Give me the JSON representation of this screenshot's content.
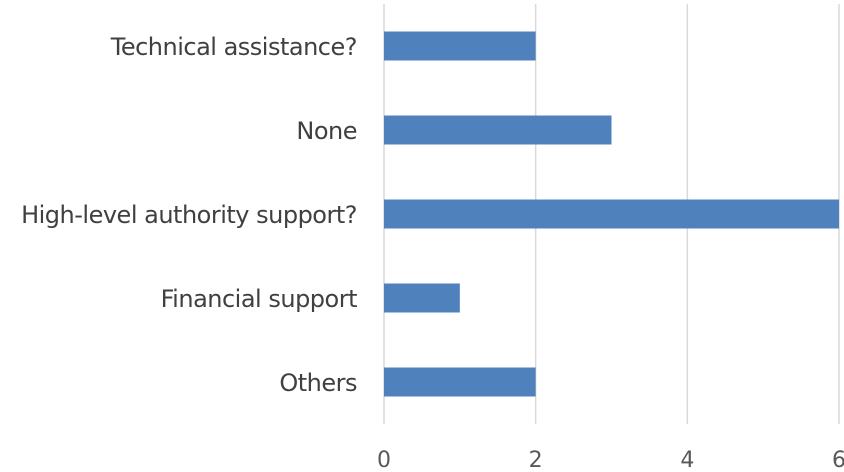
{
  "chart_data": {
    "type": "bar",
    "orientation": "horizontal",
    "categories": [
      "Technical assistance?",
      "None",
      "High-level authority support?",
      "Financial support",
      "Others"
    ],
    "values": [
      2,
      3,
      6,
      1,
      2
    ],
    "title": "",
    "xlabel": "",
    "ylabel": "",
    "xlim": [
      0,
      6
    ],
    "xticks": [
      "0",
      "2",
      "4",
      "6"
    ],
    "grid": true,
    "legend": "none",
    "bar_color": "#4f81bd"
  }
}
